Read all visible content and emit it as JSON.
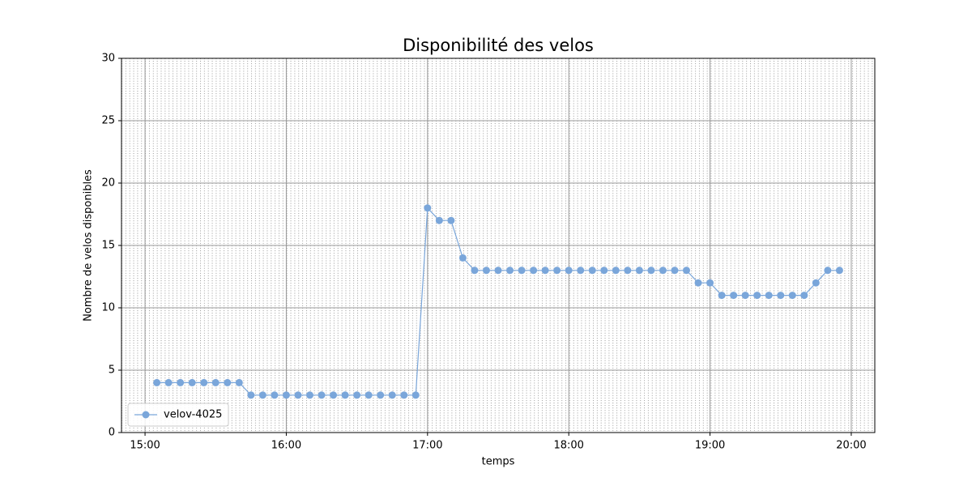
{
  "chart_data": {
    "type": "line",
    "title": "Disponibilité des velos",
    "x_label": "temps",
    "y_label": "Nombre de velos disponibles",
    "x": [
      "15:05",
      "15:10",
      "15:15",
      "15:20",
      "15:25",
      "15:30",
      "15:35",
      "15:40",
      "15:45",
      "15:50",
      "15:55",
      "16:00",
      "16:05",
      "16:10",
      "16:15",
      "16:20",
      "16:25",
      "16:30",
      "16:35",
      "16:40",
      "16:45",
      "16:50",
      "16:55",
      "17:00",
      "17:05",
      "17:10",
      "17:15",
      "17:20",
      "17:25",
      "17:30",
      "17:35",
      "17:40",
      "17:45",
      "17:50",
      "17:55",
      "18:00",
      "18:05",
      "18:10",
      "18:15",
      "18:20",
      "18:25",
      "18:30",
      "18:35",
      "18:40",
      "18:45",
      "18:50",
      "18:55",
      "19:00",
      "19:05",
      "19:10",
      "19:15",
      "19:20",
      "19:25",
      "19:30",
      "19:35",
      "19:40",
      "19:45",
      "19:50",
      "19:55"
    ],
    "series": [
      {
        "name": "velov-4025",
        "color": "#7aa6da",
        "values": [
          4,
          4,
          4,
          4,
          4,
          4,
          4,
          4,
          3,
          3,
          3,
          3,
          3,
          3,
          3,
          3,
          3,
          3,
          3,
          3,
          3,
          3,
          3,
          18,
          17,
          17,
          14,
          13,
          13,
          13,
          13,
          13,
          13,
          13,
          13,
          13,
          13,
          13,
          13,
          13,
          13,
          13,
          13,
          13,
          13,
          13,
          12,
          12,
          11,
          11,
          11,
          11,
          11,
          11,
          11,
          11,
          12,
          13,
          13
        ]
      }
    ],
    "xlim": [
      "14:50",
      "20:10"
    ],
    "xticks": [
      "15:00",
      "16:00",
      "17:00",
      "18:00",
      "19:00",
      "20:00"
    ],
    "ylim": [
      0,
      30
    ],
    "yticks": [
      0,
      5,
      10,
      15,
      20,
      25,
      30
    ],
    "grid": true,
    "minor_grid": true,
    "legend": "lower left"
  }
}
